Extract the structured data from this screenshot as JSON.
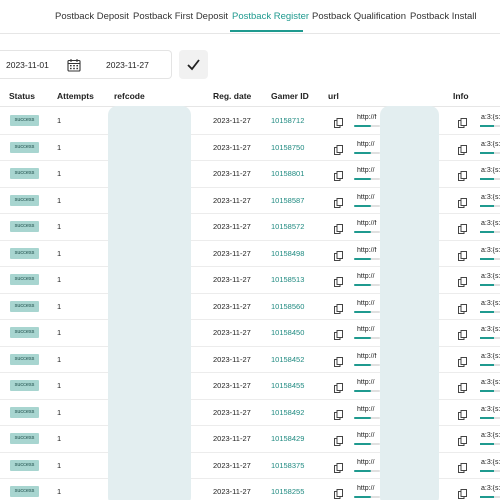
{
  "tabs": [
    {
      "label": "Postback Deposit",
      "active": false
    },
    {
      "label": "Postback First Deposit",
      "active": false
    },
    {
      "label": "Postback Register",
      "active": true
    },
    {
      "label": "Postback Qualification",
      "active": false
    },
    {
      "label": "Postback Install",
      "active": false
    }
  ],
  "filter": {
    "date_from": "2023-11-01",
    "date_to": "2023-11-27",
    "calendar_icon": "calendar-icon",
    "apply_icon": "checkmark-icon"
  },
  "columns": {
    "status": "Status",
    "attempts": "Attempts",
    "refcode": "refcode",
    "reg_date": "Reg. date",
    "gamer_id": "Gamer ID",
    "url": "url",
    "info": "Info"
  },
  "colors": {
    "accent": "#1f9a8f",
    "badge_bg": "#a8d5d0",
    "mask": "#e3eef0"
  },
  "rows": [
    {
      "status": "success",
      "attempts": "1",
      "reg_date": "2023-11-27",
      "gamer_id": "10158712",
      "url": "http://f",
      "info": "a:3:{s:"
    },
    {
      "status": "success",
      "attempts": "1",
      "reg_date": "2023-11-27",
      "gamer_id": "10158750",
      "url": "http://",
      "info": "a:3:{s:"
    },
    {
      "status": "success",
      "attempts": "1",
      "reg_date": "2023-11-27",
      "gamer_id": "10158801",
      "url": "http://",
      "info": "a:3:{s:"
    },
    {
      "status": "success",
      "attempts": "1",
      "reg_date": "2023-11-27",
      "gamer_id": "10158587",
      "url": "http://",
      "info": "a:3:{s:"
    },
    {
      "status": "success",
      "attempts": "1",
      "reg_date": "2023-11-27",
      "gamer_id": "10158572",
      "url": "http://f",
      "info": "a:3:{s:"
    },
    {
      "status": "success",
      "attempts": "1",
      "reg_date": "2023-11-27",
      "gamer_id": "10158498",
      "url": "http://f",
      "info": "a:3:{s:"
    },
    {
      "status": "success",
      "attempts": "1",
      "reg_date": "2023-11-27",
      "gamer_id": "10158513",
      "url": "http://",
      "info": "a:3:{s:"
    },
    {
      "status": "success",
      "attempts": "1",
      "reg_date": "2023-11-27",
      "gamer_id": "10158560",
      "url": "http://",
      "info": "a:3:{s:"
    },
    {
      "status": "success",
      "attempts": "1",
      "reg_date": "2023-11-27",
      "gamer_id": "10158450",
      "url": "http://",
      "info": "a:3:{s:"
    },
    {
      "status": "success",
      "attempts": "1",
      "reg_date": "2023-11-27",
      "gamer_id": "10158452",
      "url": "http://f",
      "info": "a:3:{s:"
    },
    {
      "status": "success",
      "attempts": "1",
      "reg_date": "2023-11-27",
      "gamer_id": "10158455",
      "url": "http://",
      "info": "a:3:{s:"
    },
    {
      "status": "success",
      "attempts": "1",
      "reg_date": "2023-11-27",
      "gamer_id": "10158492",
      "url": "http://",
      "info": "a:3:{s:"
    },
    {
      "status": "success",
      "attempts": "1",
      "reg_date": "2023-11-27",
      "gamer_id": "10158429",
      "url": "http://",
      "info": "a:3:{s:"
    },
    {
      "status": "success",
      "attempts": "1",
      "reg_date": "2023-11-27",
      "gamer_id": "10158375",
      "url": "http://",
      "info": "a:3:{s:"
    },
    {
      "status": "success",
      "attempts": "1",
      "reg_date": "2023-11-27",
      "gamer_id": "10158255",
      "url": "http://",
      "info": "a:3:{s:"
    }
  ]
}
